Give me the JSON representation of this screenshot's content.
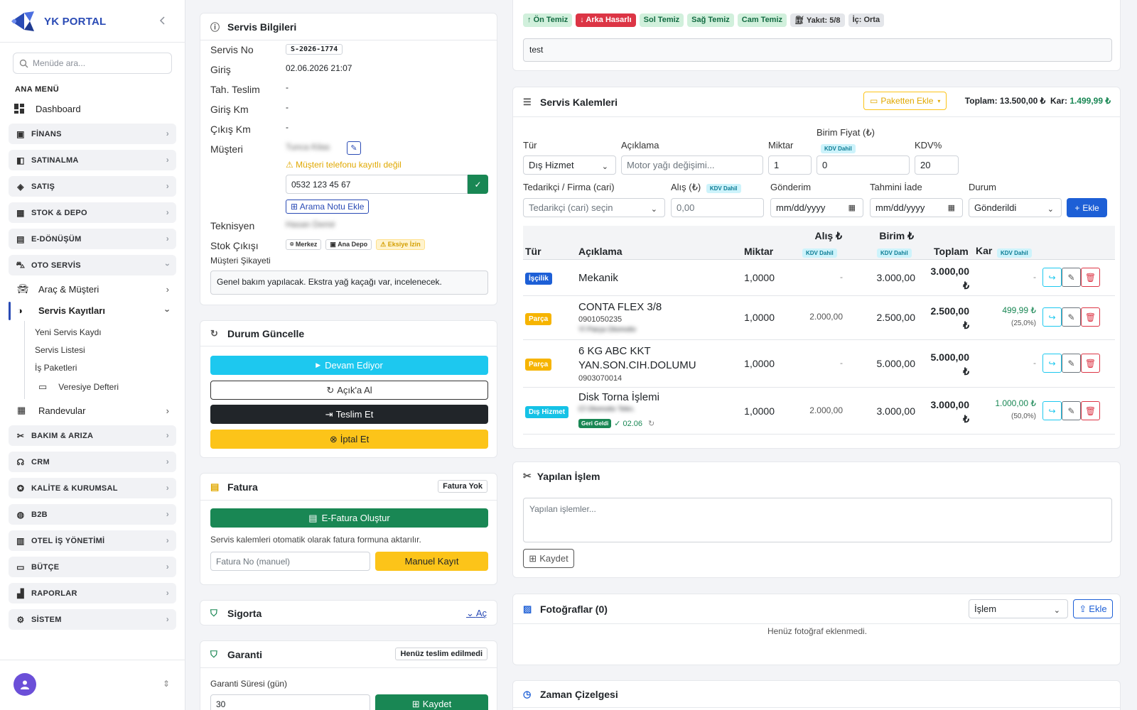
{
  "brand": {
    "title": "YK PORTAL"
  },
  "sidebar": {
    "search_placeholder": "Menüde ara...",
    "section_label": "ANA MENÜ",
    "dashboard": "Dashboard",
    "groups": [
      {
        "label": "FİNANS",
        "icon": "wallet-icon"
      },
      {
        "label": "SATINALMA",
        "icon": "shopping-bag-icon"
      },
      {
        "label": "SATIŞ",
        "icon": "tag-icon"
      },
      {
        "label": "STOK & DEPO",
        "icon": "box-icon"
      },
      {
        "label": "E-DÖNÜŞÜM",
        "icon": "document-icon"
      },
      {
        "label": "OTO SERVİS",
        "icon": "car-icon"
      },
      {
        "label": "BAKIM & ARIZA",
        "icon": "tools-icon"
      },
      {
        "label": "CRM",
        "icon": "headset-icon"
      },
      {
        "label": "KALİTE & KURUMSAL",
        "icon": "badge-icon"
      },
      {
        "label": "B2B",
        "icon": "globe-icon"
      },
      {
        "label": "OTEL İŞ YÖNETİMİ",
        "icon": "building-icon"
      },
      {
        "label": "BÜTÇE",
        "icon": "folder-icon"
      },
      {
        "label": "RAPORLAR",
        "icon": "chart-icon"
      },
      {
        "label": "SİSTEM",
        "icon": "gear-icon"
      }
    ],
    "oto_sub": {
      "arac": "Araç & Müşteri",
      "servis": "Servis Kayıtları",
      "yeni": "Yeni Servis Kaydı",
      "liste": "Servis Listesi",
      "paket": "İş Paketleri",
      "veresiye": "Veresiye Defteri",
      "randevu": "Randevular"
    }
  },
  "servis_bilgileri": {
    "title": "Servis Bilgileri",
    "servis_no_label": "Servis No",
    "servis_no": "S-2026-1774",
    "giris_label": "Giriş",
    "giris": "02.06.2026 21:07",
    "tah_label": "Tah. Teslim",
    "tah": "-",
    "giris_km_label": "Giriş Km",
    "giris_km": "-",
    "cikis_km_label": "Çıkış Km",
    "cikis_km": "-",
    "musteri_label": "Müşteri",
    "musteri": "Tunca Kilas",
    "warning": "Müşteri telefonu kayıtlı değil",
    "phone": "0532 123 45 67",
    "arama_btn": "Arama Notu Ekle",
    "teknisyen_label": "Teknisyen",
    "teknisyen": "Hasan Demir",
    "stok_label": "Stok Çıkışı",
    "stok_merkez": "Merkez",
    "stok_depo": "Ana Depo",
    "stok_izin": "Eksiye İzin",
    "sikayet_label": "Müşteri Şikayeti",
    "sikayet": "Genel bakım yapılacak. Ekstra yağ kaçağı var, incelenecek."
  },
  "durum": {
    "title": "Durum Güncelle",
    "devam": "Devam Ediyor",
    "acik": "Açık'a Al",
    "teslim": "Teslim Et",
    "iptal": "İptal Et"
  },
  "fatura": {
    "title": "Fatura",
    "status": "Fatura Yok",
    "efatura": "E-Fatura Oluştur",
    "note": "Servis kalemleri otomatik olarak fatura formuna aktarılır.",
    "no_placeholder": "Fatura No (manuel)",
    "manuel": "Manuel Kayıt"
  },
  "sigorta": {
    "title": "Sigorta",
    "toggle": "Aç"
  },
  "garanti": {
    "title": "Garanti",
    "status": "Henüz teslim edilmedi",
    "sure_label": "Garanti Süresi (gün)",
    "sure": "30",
    "kaydet": "Kaydet"
  },
  "inspection": {
    "tags": [
      {
        "text": "Ön Temiz",
        "icon": "arrow-up-icon",
        "bg": "#d1f0dc",
        "fg": "#146c43"
      },
      {
        "text": "Arka Hasarlı",
        "icon": "arrow-down-icon",
        "bg": "#dc3545",
        "fg": "#ffffff"
      },
      {
        "text": "Sol Temiz",
        "icon": "",
        "bg": "#d1f0dc",
        "fg": "#146c43"
      },
      {
        "text": "Sağ Temiz",
        "icon": "",
        "bg": "#d1f0dc",
        "fg": "#146c43"
      },
      {
        "text": "Cam Temiz",
        "icon": "",
        "bg": "#d1f0dc",
        "fg": "#146c43"
      },
      {
        "text": "Yakıt: 5/8",
        "icon": "fuel-icon",
        "bg": "#e4e6ea",
        "fg": "#333333"
      },
      {
        "text": "İç: Orta",
        "icon": "",
        "bg": "#e4e6ea",
        "fg": "#333333"
      }
    ],
    "note": "test"
  },
  "kalemler": {
    "title": "Servis Kalemleri",
    "paket_btn": "Paketten Ekle",
    "toplam_label": "Toplam:",
    "toplam": "13.500,00 ₺",
    "kar_label": "Kar:",
    "kar": "1.499,99 ₺",
    "form": {
      "tur_label": "Tür",
      "tur": "Dış Hizmet",
      "aciklama_label": "Açıklama",
      "aciklama_placeholder": "Motor yağı değişimi...",
      "miktar_label": "Miktar",
      "miktar": "1",
      "birim_label": "Birim Fiyat (₺)",
      "birim": "0",
      "kdv_label": "KDV%",
      "kdv": "20",
      "kdv_dahil": "KDV Dahil",
      "tedarikci_label": "Tedarikçi / Firma (cari)",
      "tedarikci_placeholder": "Tedarikçi (cari) seçin",
      "alis_label": "Alış (₺)",
      "alis_placeholder": "0,00",
      "gonderim_label": "Gönderim",
      "gonderim_placeholder": "mm/dd/yyyy",
      "iade_label": "Tahmini İade",
      "iade_placeholder": "mm/dd/yyyy",
      "durum_label": "Durum",
      "durum": "Gönderildi",
      "ekle": "Ekle"
    },
    "headers": {
      "tur": "Tür",
      "aciklama": "Açıklama",
      "miktar": "Miktar",
      "alis": "Alış ₺",
      "birim": "Birim ₺",
      "toplam": "Toplam",
      "kar": "Kar",
      "kdv": "KDV Dahil"
    },
    "rows": [
      {
        "type": "İşçilik",
        "type_bg": "#1d5fd6",
        "name": "Mekanik",
        "code": "",
        "supplier": "",
        "qty": "1,0000",
        "alis": "-",
        "birim": "3.000,00",
        "toplam_a": "3.000,00",
        "toplam_b": "₺",
        "kar": "-",
        "kar_pct": ""
      },
      {
        "type": "Parça",
        "type_bg": "#f6b400",
        "name": "CONTA FLEX 3/8",
        "code": "0901050235",
        "supplier": "Yİ Parça Otomotiv",
        "qty": "1,0000",
        "alis": "2.000,00",
        "birim": "2.500,00",
        "toplam_a": "2.500,00",
        "toplam_b": "₺",
        "kar": "499,99 ₺",
        "kar_pct": "(25,0%)"
      },
      {
        "type": "Parça",
        "type_bg": "#f6b400",
        "name_a": "6 KG ABC KKT",
        "name_b": "YAN.SON.CIH.DOLUMU",
        "code": "0903070014",
        "qty": "1,0000",
        "alis": "-",
        "birim": "5.000,00",
        "toplam_a": "5.000,00",
        "toplam_b": "₺",
        "kar": "-",
        "kar_pct": ""
      },
      {
        "type": "Dış Hizmet",
        "type_bg": "#15c2e6",
        "name": "Disk Torna İşlemi",
        "supplier": "Cİ Otomotiv Tekn.",
        "status_badge": "Geri Geldi",
        "status_date": "✓ 02.06",
        "qty": "1,0000",
        "alis": "2.000,00",
        "birim": "3.000,00",
        "toplam_a": "3.000,00",
        "toplam_b": "₺",
        "kar": "1.000,00 ₺",
        "kar_pct": "(50,0%)"
      }
    ]
  },
  "yapilan": {
    "title": "Yapılan İşlem",
    "placeholder": "Yapılan işlemler...",
    "kaydet": "Kaydet"
  },
  "fotograflar": {
    "title": "Fotoğraflar (0)",
    "kategori": "İşlem",
    "ekle": "Ekle",
    "empty": "Henüz fotoğraf eklenmedi."
  },
  "zaman": {
    "title": "Zaman Çizelgesi"
  },
  "colors": {
    "brand": "#2a4bb5",
    "cyan": "#1dc8ef",
    "dark": "#212529",
    "yellow": "#fcc419",
    "green": "#198754",
    "blue": "#1d5fd6",
    "red": "#dc3545"
  }
}
